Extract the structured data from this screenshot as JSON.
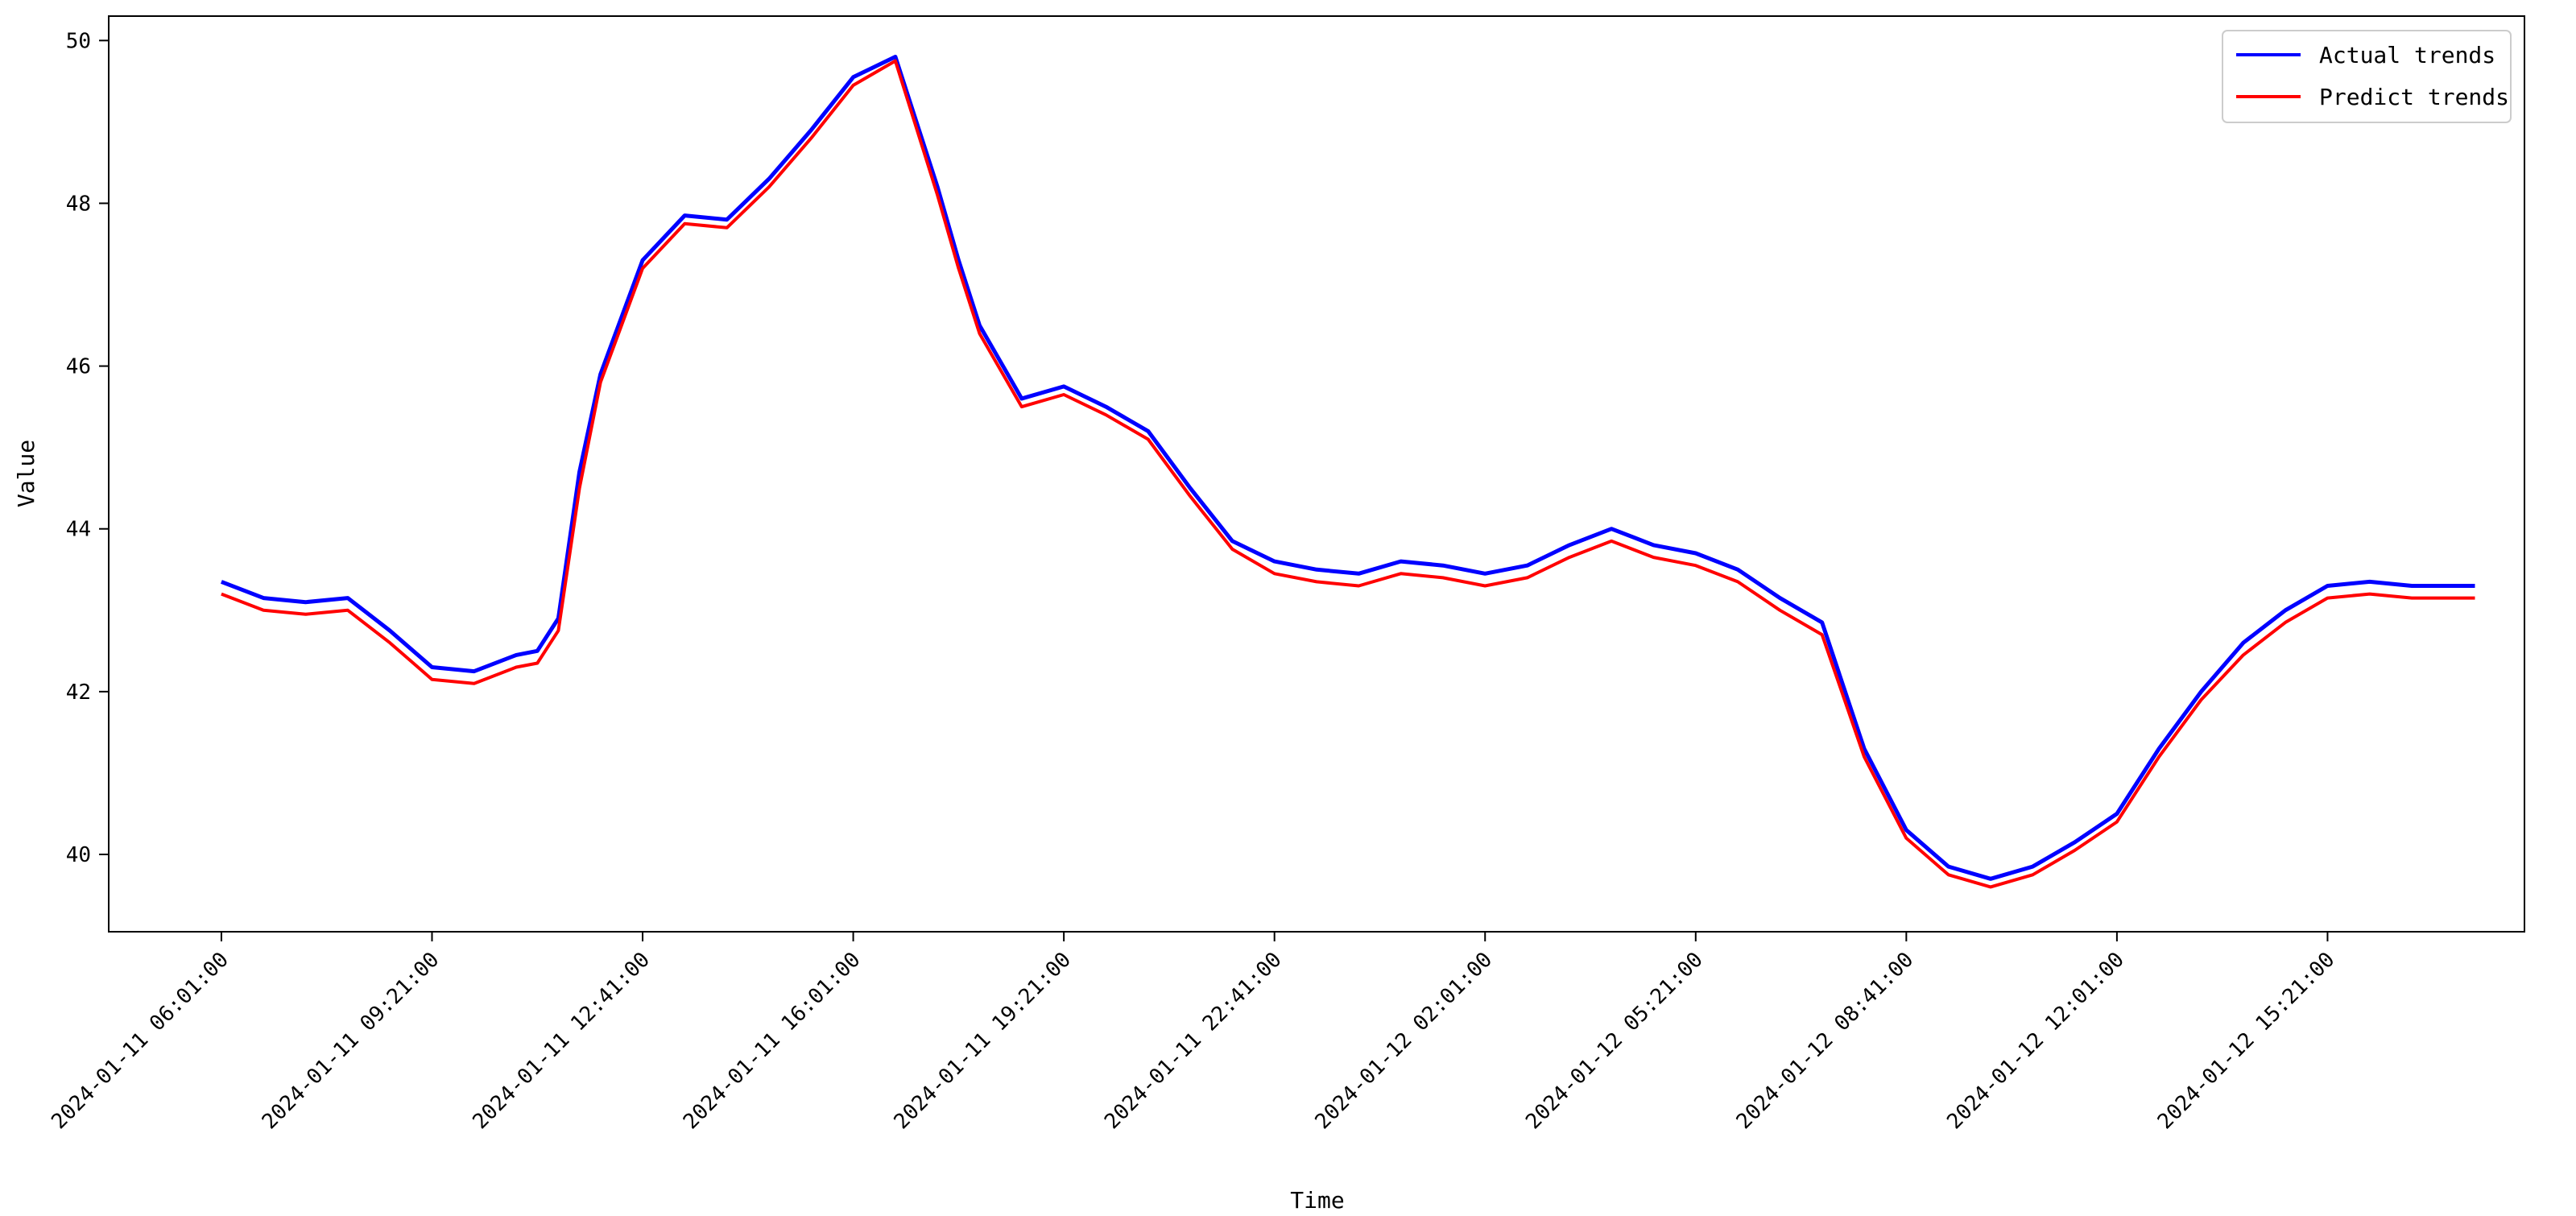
{
  "chart_data": {
    "type": "line",
    "title": "",
    "xlabel": "Time",
    "ylabel": "Value",
    "x_ticks": [
      "2024-01-11 06:01:00",
      "2024-01-11 09:21:00",
      "2024-01-11 12:41:00",
      "2024-01-11 16:01:00",
      "2024-01-11 19:21:00",
      "2024-01-11 22:41:00",
      "2024-01-12 02:01:00",
      "2024-01-12 05:21:00",
      "2024-01-12 08:41:00",
      "2024-01-12 12:01:00",
      "2024-01-12 15:21:00"
    ],
    "y_ticks": [
      40,
      42,
      44,
      46,
      48,
      50
    ],
    "xlim": [
      "2024-01-11 04:14:00",
      "2024-01-12 18:28:00"
    ],
    "ylim": [
      39.05,
      50.3
    ],
    "grid": false,
    "legend_position": "top-right",
    "x": [
      "2024-01-11 06:01:00",
      "2024-01-11 06:41:00",
      "2024-01-11 07:21:00",
      "2024-01-11 08:01:00",
      "2024-01-11 08:41:00",
      "2024-01-11 09:21:00",
      "2024-01-11 10:01:00",
      "2024-01-11 10:41:00",
      "2024-01-11 11:01:00",
      "2024-01-11 11:21:00",
      "2024-01-11 11:41:00",
      "2024-01-11 12:01:00",
      "2024-01-11 12:41:00",
      "2024-01-11 13:21:00",
      "2024-01-11 14:01:00",
      "2024-01-11 14:41:00",
      "2024-01-11 15:21:00",
      "2024-01-11 16:01:00",
      "2024-01-11 16:41:00",
      "2024-01-11 17:21:00",
      "2024-01-11 17:41:00",
      "2024-01-11 18:01:00",
      "2024-01-11 18:41:00",
      "2024-01-11 19:21:00",
      "2024-01-11 20:01:00",
      "2024-01-11 20:41:00",
      "2024-01-11 21:21:00",
      "2024-01-11 22:01:00",
      "2024-01-11 22:41:00",
      "2024-01-11 23:21:00",
      "2024-01-12 00:01:00",
      "2024-01-12 00:41:00",
      "2024-01-12 01:21:00",
      "2024-01-12 02:01:00",
      "2024-01-12 02:41:00",
      "2024-01-12 03:21:00",
      "2024-01-12 04:01:00",
      "2024-01-12 04:41:00",
      "2024-01-12 05:21:00",
      "2024-01-12 06:01:00",
      "2024-01-12 06:41:00",
      "2024-01-12 07:21:00",
      "2024-01-12 08:01:00",
      "2024-01-12 08:41:00",
      "2024-01-12 09:21:00",
      "2024-01-12 10:01:00",
      "2024-01-12 10:41:00",
      "2024-01-12 11:21:00",
      "2024-01-12 12:01:00",
      "2024-01-12 12:41:00",
      "2024-01-12 13:21:00",
      "2024-01-12 14:01:00",
      "2024-01-12 14:41:00",
      "2024-01-12 15:21:00",
      "2024-01-12 16:01:00",
      "2024-01-12 16:41:00",
      "2024-01-12 17:41:00"
    ],
    "series": [
      {
        "name": "Actual trends",
        "color": "#0000ff",
        "values": [
          43.35,
          43.15,
          43.1,
          43.15,
          42.75,
          42.3,
          42.25,
          42.45,
          42.5,
          42.9,
          44.7,
          45.9,
          47.3,
          47.85,
          47.8,
          48.3,
          48.9,
          49.55,
          49.8,
          48.2,
          47.3,
          46.5,
          45.6,
          45.75,
          45.5,
          45.2,
          44.5,
          43.85,
          43.6,
          43.5,
          43.45,
          43.6,
          43.55,
          43.45,
          43.55,
          43.8,
          44.0,
          43.8,
          43.7,
          43.5,
          43.15,
          42.85,
          41.3,
          40.3,
          39.85,
          39.7,
          39.85,
          40.15,
          40.5,
          41.3,
          42.0,
          42.6,
          43.0,
          43.3,
          43.35,
          43.3,
          43.3
        ]
      },
      {
        "name": "Predict trends",
        "color": "#ff0000",
        "values": [
          43.2,
          43.0,
          42.95,
          43.0,
          42.6,
          42.15,
          42.1,
          42.3,
          42.35,
          42.75,
          44.5,
          45.8,
          47.2,
          47.75,
          47.7,
          48.2,
          48.8,
          49.45,
          49.75,
          48.1,
          47.2,
          46.4,
          45.5,
          45.65,
          45.4,
          45.1,
          44.4,
          43.75,
          43.45,
          43.35,
          43.3,
          43.45,
          43.4,
          43.3,
          43.4,
          43.65,
          43.85,
          43.65,
          43.55,
          43.35,
          43.0,
          42.7,
          41.2,
          40.2,
          39.75,
          39.6,
          39.75,
          40.05,
          40.4,
          41.2,
          41.9,
          42.45,
          42.85,
          43.15,
          43.2,
          43.15,
          43.15
        ]
      }
    ]
  }
}
